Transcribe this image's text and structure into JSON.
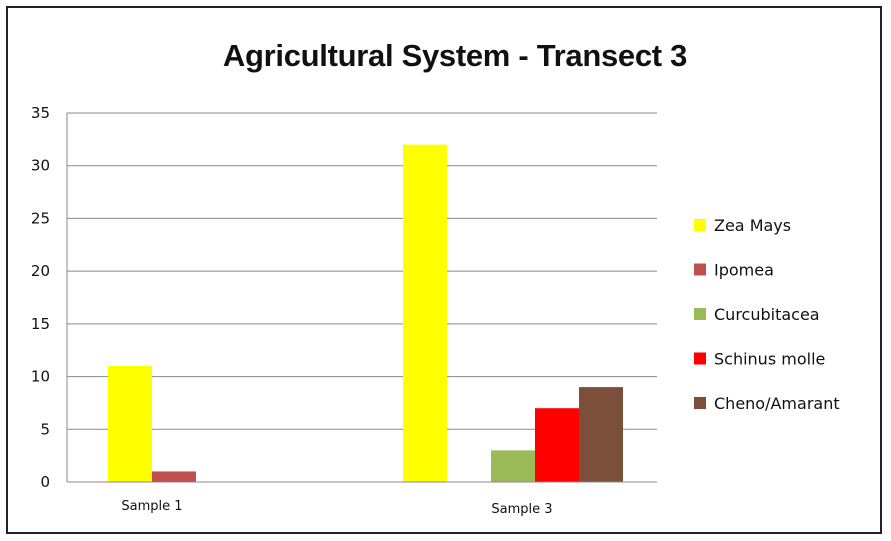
{
  "chart_data": {
    "type": "bar",
    "title": "Agricultural System - Transect 3",
    "categories": [
      "Sample 1",
      "Sample 3"
    ],
    "series": [
      {
        "name": "Zea Mays",
        "color": "#FFFF00",
        "values": [
          11,
          32
        ]
      },
      {
        "name": "Ipomea",
        "color": "#C0504D",
        "values": [
          1,
          0
        ]
      },
      {
        "name": "Curcubitacea",
        "color": "#9BBB59",
        "values": [
          0,
          3
        ]
      },
      {
        "name": "Schinus molle",
        "color": "#FF0000",
        "values": [
          0,
          7
        ]
      },
      {
        "name": "Cheno/Amarant",
        "color": "#7B4F3A",
        "values": [
          0,
          9
        ]
      }
    ],
    "ylim": [
      0,
      35
    ],
    "yticks": [
      0,
      5,
      10,
      15,
      20,
      25,
      30,
      35
    ],
    "grid": true,
    "legend": "right",
    "xlabel": "",
    "ylabel": ""
  }
}
